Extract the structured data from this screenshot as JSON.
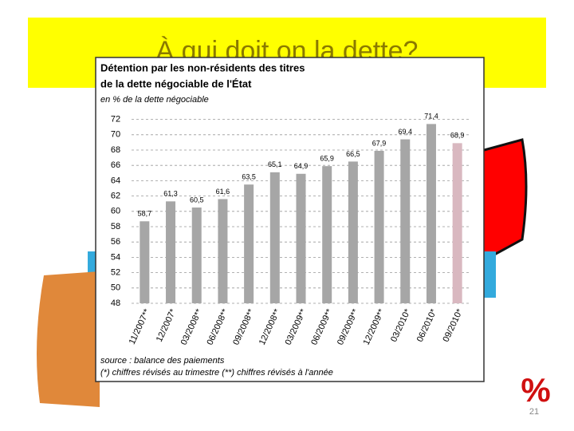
{
  "slide": {
    "title": "À qui doit on la dette?",
    "page_number": "21"
  },
  "chart_data": {
    "type": "bar",
    "title": [
      "Détention par les non-résidents des titres",
      "de la dette négociable de l'État"
    ],
    "subtitle": "en % de la dette négociable",
    "categories": [
      "11/2007**",
      "12/2007*",
      "03/2008**",
      "06/2008**",
      "09/2008**",
      "12/2008**",
      "03/2009**",
      "06/2009**",
      "09/2009**",
      "12/2009**",
      "03/2010*",
      "06/2010*",
      "09/2010*"
    ],
    "values": [
      58.7,
      61.3,
      60.5,
      61.6,
      63.5,
      65.1,
      64.9,
      65.9,
      66.5,
      67.9,
      69.4,
      71.4,
      68.9
    ],
    "value_labels": [
      "58,7",
      "61,3",
      "60,5",
      "61,6",
      "63,5",
      "65,1",
      "64,9",
      "65,9",
      "66,5",
      "67,9",
      "69,4",
      "71,4",
      "68,9"
    ],
    "colors": [
      "#a6a6a6",
      "#a6a6a6",
      "#a6a6a6",
      "#a6a6a6",
      "#a6a6a6",
      "#a6a6a6",
      "#a6a6a6",
      "#a6a6a6",
      "#a6a6a6",
      "#a6a6a6",
      "#a6a6a6",
      "#a6a6a6",
      "#d9b8c0"
    ],
    "ylim": [
      48,
      73
    ],
    "yticks": [
      48,
      50,
      52,
      54,
      56,
      58,
      60,
      62,
      64,
      66,
      68,
      70,
      72
    ],
    "grid": true,
    "source": "source : balance des paiements",
    "note": "(*) chiffres révisés au trimestre (**) chiffres révisés à l'année"
  }
}
